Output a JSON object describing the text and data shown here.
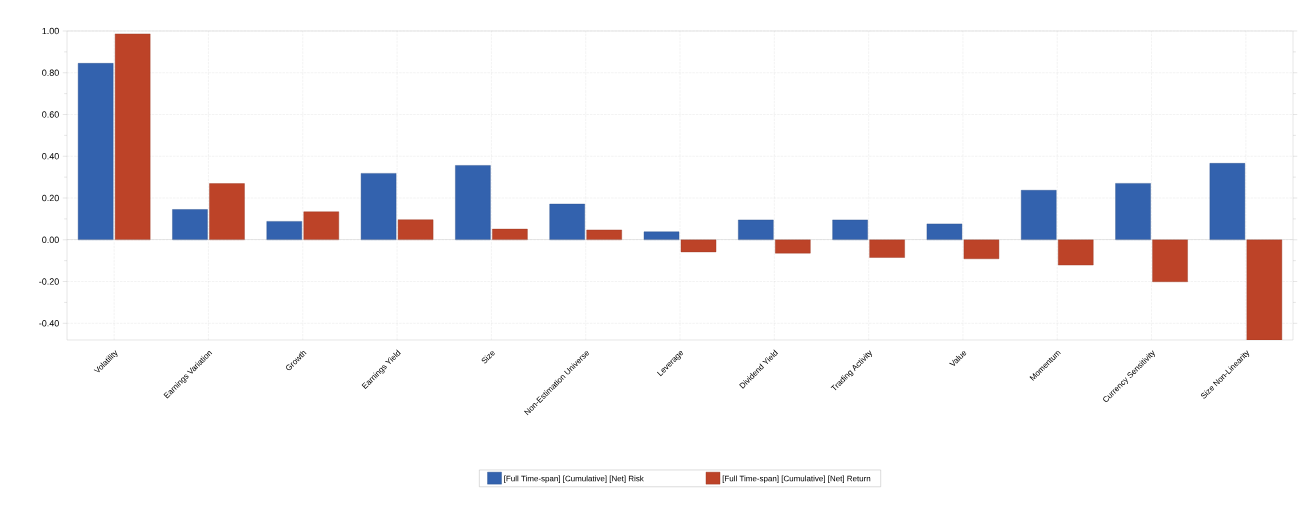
{
  "chart_data": {
    "type": "bar",
    "categories": [
      "Volatility",
      "Earnings Variation",
      "Growth",
      "Earnings Yield",
      "Size",
      "Non-Estimation Universe",
      "Leverage",
      "Dividend Yield",
      "Trading Activity",
      "Value",
      "Momentum",
      "Currency Sensitivity",
      "Size Non-Linearity"
    ],
    "series": [
      {
        "name": "[Full Time-span] [Cumulative] [Net] Risk",
        "color": "#3362ae",
        "values": [
          0.845,
          0.145,
          0.088,
          0.318,
          0.356,
          0.171,
          0.038,
          0.095,
          0.095,
          0.076,
          0.237,
          0.27,
          0.366
        ]
      },
      {
        "name": "[Full Time-span] [Cumulative] [Net] Return",
        "color": "#bd4328",
        "values": [
          0.986,
          0.269,
          0.134,
          0.096,
          0.051,
          0.047,
          -0.058,
          -0.064,
          -0.085,
          -0.091,
          -0.121,
          -0.201,
          -0.48
        ]
      }
    ],
    "ylim": [
      -0.48,
      1.0
    ],
    "yticks": [
      {
        "value": -0.4,
        "label": "-0.40"
      },
      {
        "value": -0.2,
        "label": "-0.20"
      },
      {
        "value": 0,
        "label": "0.00"
      },
      {
        "value": 0.2,
        "label": "0.20"
      },
      {
        "value": 0.4,
        "label": "0.40"
      },
      {
        "value": 0.6,
        "label": "0.60"
      },
      {
        "value": 0.8,
        "label": "0.80"
      },
      {
        "value": 1.0,
        "label": "1.00"
      }
    ],
    "grid": true,
    "legend": "bottom"
  }
}
